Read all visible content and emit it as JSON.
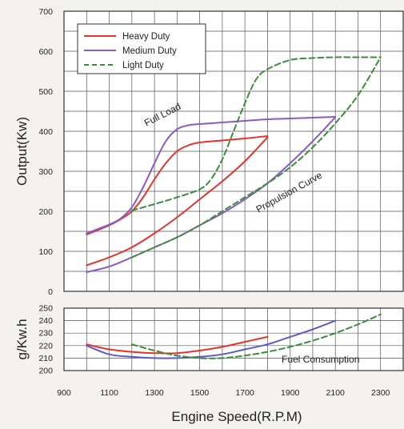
{
  "chart_data": [
    {
      "type": "line",
      "panel": "output",
      "title": "",
      "xlabel": "Engine Speed(R.P.M)",
      "ylabel": "Output(Kw)",
      "xlim": [
        900,
        2400
      ],
      "ylim": [
        0,
        700
      ],
      "x_ticks": [
        900,
        1100,
        1300,
        1500,
        1700,
        1900,
        2100,
        2300
      ],
      "y_ticks": [
        0,
        100,
        200,
        300,
        400,
        500,
        600,
        700
      ],
      "grid": true,
      "legend_position": "top-left",
      "annotations": [
        {
          "text": "Full Load",
          "x": 1270,
          "y": 440
        },
        {
          "text": "Propulsion Curve",
          "x": 1950,
          "y": 255
        }
      ],
      "series": [
        {
          "name": "Heavy Duty",
          "curve": "full-load",
          "style": "solid",
          "color": "#e8322a",
          "x": [
            1000,
            1100,
            1150,
            1200,
            1250,
            1300,
            1350,
            1400,
            1450,
            1500,
            1600,
            1700,
            1800
          ],
          "y": [
            142,
            165,
            180,
            200,
            235,
            280,
            320,
            350,
            365,
            372,
            377,
            382,
            388
          ]
        },
        {
          "name": "Medium Duty",
          "curve": "full-load",
          "style": "solid",
          "color": "#8a5ac8",
          "x": [
            1000,
            1100,
            1150,
            1200,
            1250,
            1300,
            1350,
            1400,
            1450,
            1500,
            1600,
            1700,
            1800,
            1900,
            2000,
            2100
          ],
          "y": [
            145,
            167,
            182,
            210,
            260,
            320,
            375,
            405,
            415,
            418,
            422,
            426,
            430,
            432,
            434,
            436
          ]
        },
        {
          "name": "Light Duty",
          "curve": "full-load",
          "style": "dashed",
          "color": "#3a8e3a",
          "x": [
            1200,
            1300,
            1400,
            1500,
            1550,
            1600,
            1650,
            1700,
            1750,
            1800,
            1900,
            2000,
            2100,
            2200,
            2300
          ],
          "y": [
            202,
            218,
            235,
            255,
            280,
            330,
            400,
            470,
            530,
            555,
            578,
            583,
            585,
            585,
            585
          ]
        },
        {
          "name": "Heavy Duty",
          "curve": "propulsion",
          "style": "solid",
          "color": "#e8322a",
          "x": [
            1000,
            1100,
            1200,
            1300,
            1400,
            1500,
            1600,
            1700,
            1800
          ],
          "y": [
            65,
            85,
            110,
            145,
            185,
            230,
            275,
            325,
            385
          ]
        },
        {
          "name": "Medium Duty",
          "curve": "propulsion",
          "style": "solid",
          "color": "#8a5ac8",
          "x": [
            1000,
            1100,
            1200,
            1300,
            1400,
            1500,
            1600,
            1700,
            1800,
            1900,
            2000,
            2100
          ],
          "y": [
            48,
            62,
            85,
            110,
            135,
            165,
            195,
            230,
            270,
            320,
            375,
            435
          ]
        },
        {
          "name": "Light Duty",
          "curve": "propulsion",
          "style": "dashed",
          "color": "#3a8e3a",
          "x": [
            1200,
            1300,
            1400,
            1500,
            1600,
            1700,
            1800,
            1900,
            2000,
            2100,
            2200,
            2300
          ],
          "y": [
            85,
            110,
            135,
            165,
            200,
            235,
            270,
            310,
            360,
            420,
            490,
            585
          ]
        }
      ]
    },
    {
      "type": "line",
      "panel": "fuel",
      "title": "",
      "xlabel": "Engine Speed(R.P.M)",
      "ylabel": "g/Kw.h",
      "xlim": [
        900,
        2400
      ],
      "ylim": [
        200,
        250
      ],
      "y_ticks": [
        200,
        210,
        220,
        230,
        240,
        250
      ],
      "grid": true,
      "annotations": [
        {
          "text": "Fuel Consumption",
          "x": 2100,
          "y": 214
        }
      ],
      "series": [
        {
          "name": "Heavy Duty",
          "style": "solid",
          "color": "#e8322a",
          "x": [
            1000,
            1100,
            1200,
            1300,
            1400,
            1500,
            1600,
            1700,
            1800
          ],
          "y": [
            221,
            217,
            215,
            214,
            214,
            216,
            219,
            223,
            227
          ]
        },
        {
          "name": "Medium Duty",
          "style": "solid",
          "color": "#5a5ad0",
          "x": [
            1000,
            1100,
            1200,
            1300,
            1400,
            1500,
            1600,
            1700,
            1800,
            1900,
            2000,
            2100
          ],
          "y": [
            220,
            213,
            211,
            210,
            210,
            211,
            213,
            217,
            221,
            227,
            233,
            240
          ]
        },
        {
          "name": "Light Duty",
          "style": "dashed",
          "color": "#3a8e3a",
          "x": [
            1200,
            1300,
            1400,
            1500,
            1600,
            1700,
            1800,
            1900,
            2000,
            2100,
            2200,
            2300
          ],
          "y": [
            221,
            216,
            212,
            210,
            210,
            212,
            215,
            219,
            224,
            230,
            237,
            245
          ]
        }
      ]
    }
  ]
}
